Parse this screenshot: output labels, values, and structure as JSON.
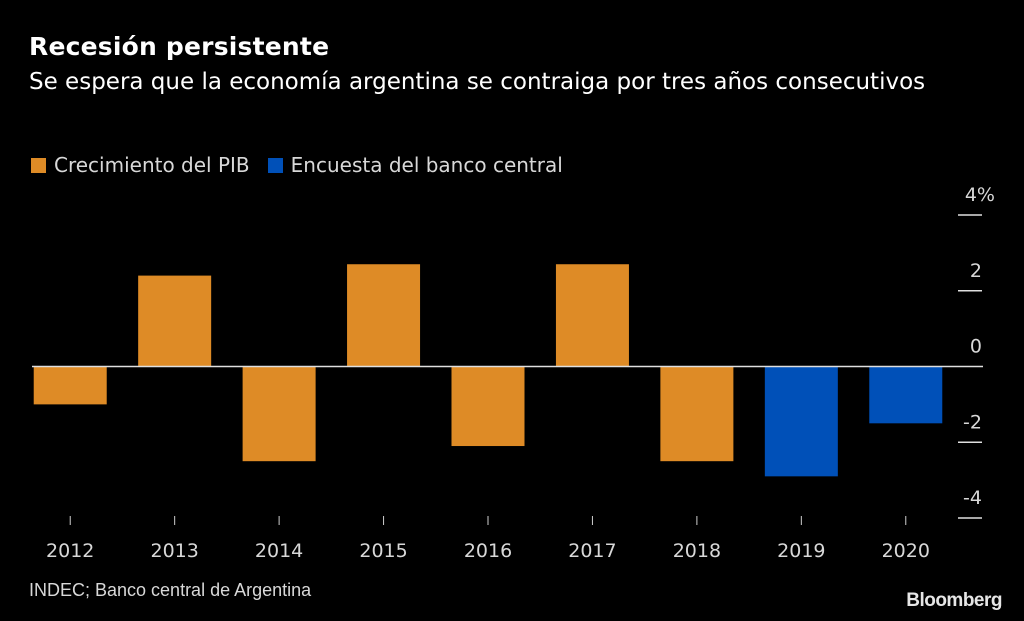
{
  "chart_data": {
    "type": "bar",
    "title": "Recesión persistente",
    "subtitle": "Se espera que la economía argentina se contraiga por tres años consecutivos",
    "categories": [
      "2012",
      "2013",
      "2014",
      "2015",
      "2016",
      "2017",
      "2018",
      "2019",
      "2020"
    ],
    "series": [
      {
        "name": "Crecimiento del PIB",
        "color": "#DE8B26",
        "values": [
          -1.0,
          2.4,
          -2.5,
          2.7,
          -2.1,
          2.7,
          -2.5,
          null,
          null
        ]
      },
      {
        "name": "Encuesta del banco central",
        "color": "#0050B8",
        "values": [
          null,
          null,
          null,
          null,
          null,
          null,
          null,
          -2.9,
          -1.5
        ]
      }
    ],
    "xlabel": "",
    "ylabel": "",
    "ylim": [
      -4,
      4
    ],
    "yticks": [
      4,
      2,
      0,
      -2,
      -4
    ],
    "ytick_labels": [
      "4%",
      "2",
      "0",
      "-2",
      "-4"
    ],
    "y_axis_side": "right",
    "legend_position": "top-left",
    "grid": false,
    "source": "INDEC; Banco central de Argentina",
    "brand": "Bloomberg"
  }
}
